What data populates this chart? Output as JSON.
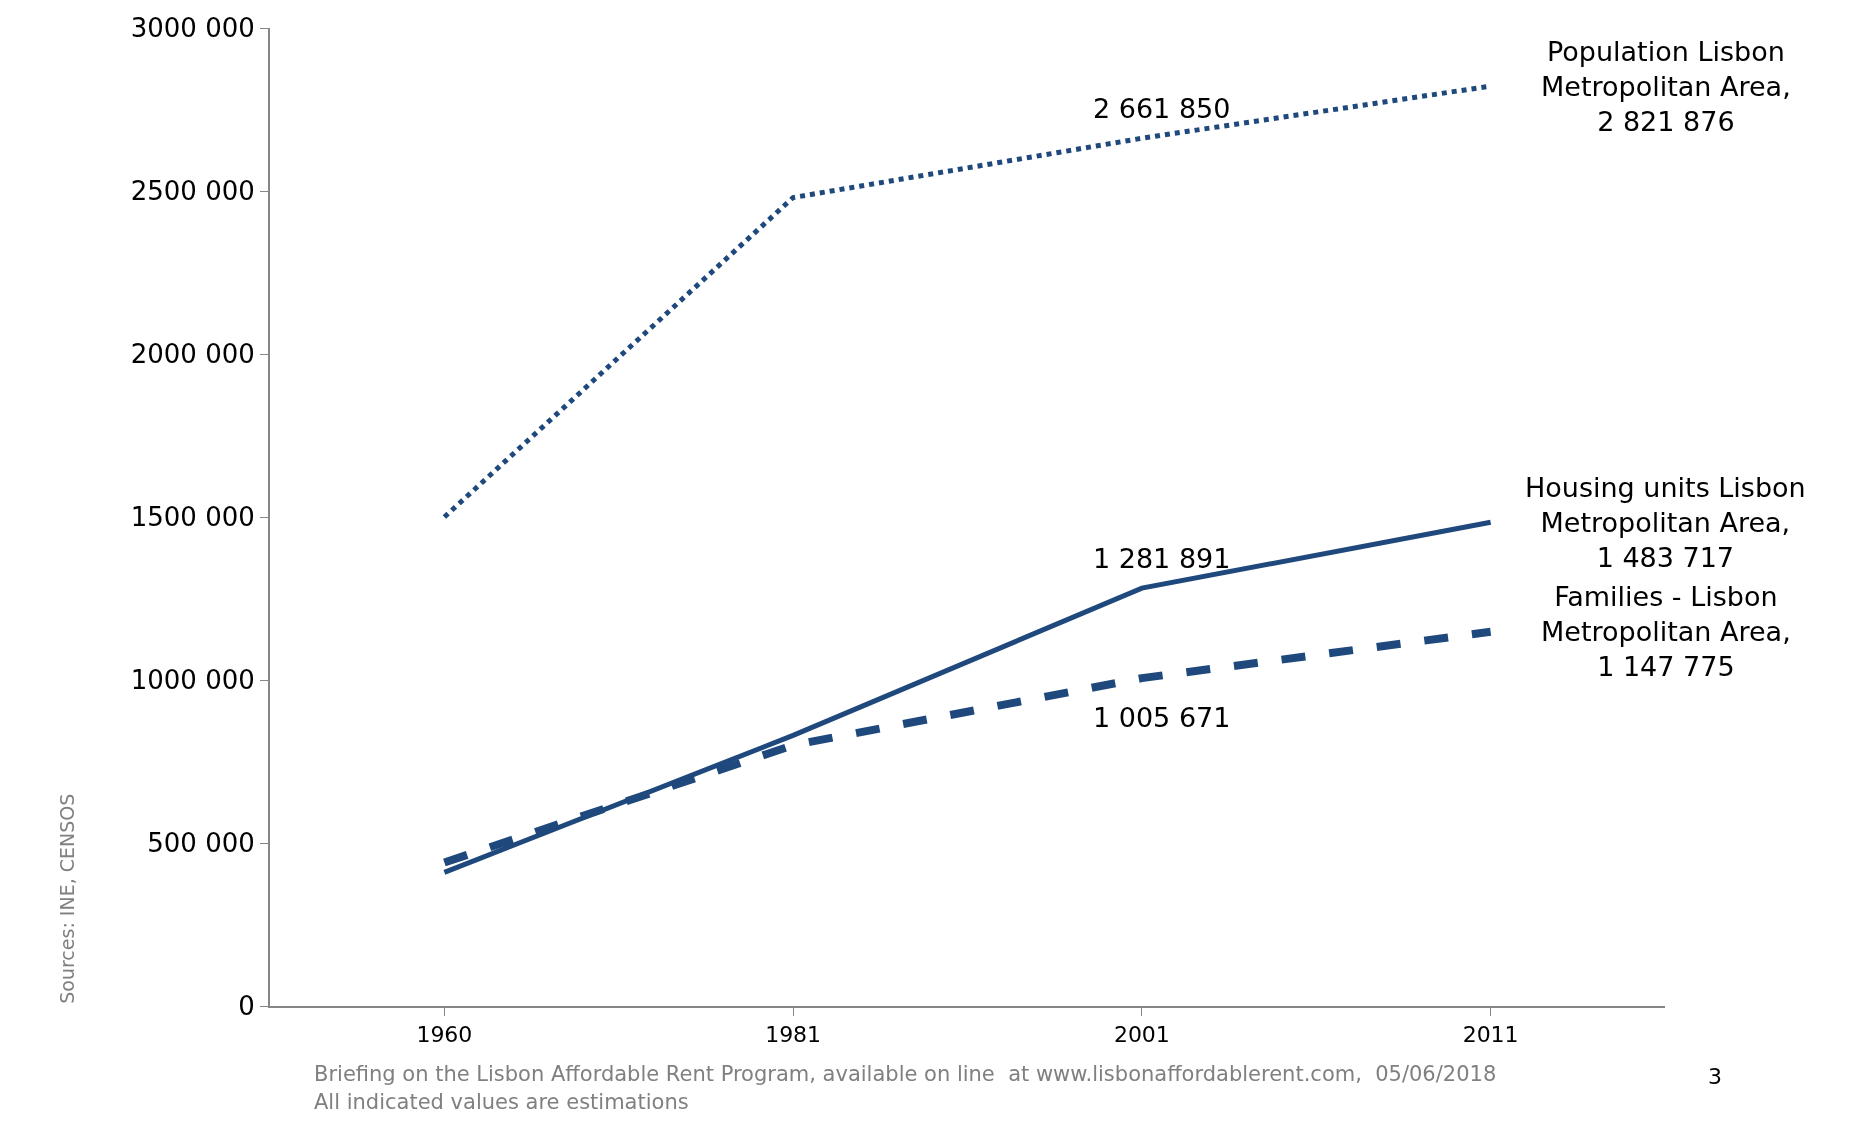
{
  "chart_data": {
    "type": "line",
    "categories": [
      "1960",
      "1981",
      "2001",
      "2011"
    ],
    "series": [
      {
        "color": "#1f497d",
        "line_style": "dotted",
        "values": [
          1500000,
          2480000,
          2661850,
          2821876
        ],
        "value_labels": [
          null,
          null,
          "2 661 850",
          null
        ]
      },
      {
        "color": "#1f497d",
        "line_style": "solid",
        "values": [
          410000,
          830000,
          1281891,
          1483717
        ],
        "value_labels": [
          null,
          null,
          "1 281 891",
          null
        ]
      },
      {
        "color": "#1f497d",
        "line_style": "dashed",
        "values": [
          440000,
          800000,
          1005671,
          1147775
        ],
        "value_labels": [
          null,
          null,
          "1 005 671",
          null
        ]
      }
    ],
    "ylim": [
      0,
      3000000
    ],
    "yticks": [
      {
        "value": 0,
        "label": "0"
      },
      {
        "value": 500000,
        "label": "500 000"
      },
      {
        "value": 1000000,
        "label": "1000 000"
      },
      {
        "value": 1500000,
        "label": "1500 000"
      },
      {
        "value": 2000000,
        "label": "2000 000"
      },
      {
        "value": 2500000,
        "label": "2500 000"
      },
      {
        "value": 3000000,
        "label": "3000 000"
      }
    ],
    "legend": false,
    "marker": "none",
    "annotations": [
      {
        "text": "Population Lisbon Metropolitan Area, 2 821 876",
        "x": "2011",
        "y": 2821876
      },
      {
        "text": "Housing units Lisbon Metropolitan Area, 1 483 717",
        "x": "2011",
        "y": 1483717
      },
      {
        "text": "Families - Lisbon Metropolitan Area, 1 147 775",
        "x": "2011",
        "y": 1147775
      },
      "Sources: INE, CENSOS",
      "Briefing on the Lisbon Affordable Rent Program, available on line  at www.lisbonaffordablerent.com,  05/06/2018",
      "All indicated values are estimations",
      "3"
    ]
  }
}
